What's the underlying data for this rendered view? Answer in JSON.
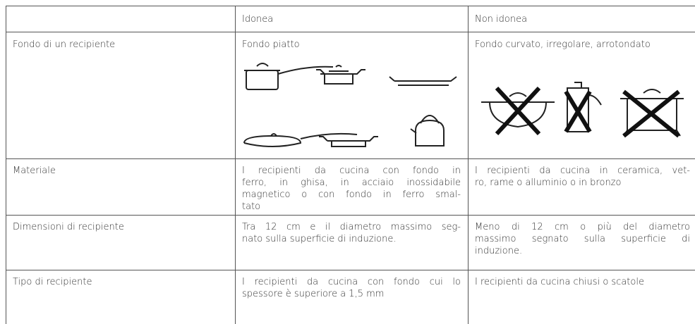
{
  "table": {
    "header": [
      "Idonea",
      "Non idonea"
    ],
    "rows": [
      {
        "label": "Fondo di un recipiente",
        "suitable": [
          "Fondo piatto"
        ],
        "unsuitable": [
          "Fondo curvato, irregolare, arrotondato"
        ]
      },
      {
        "label": "Materiale",
        "suitable": [
          "I recipienti da cucina con fondo in",
          "ferro, in ghisa, in acciaio inossidabile",
          "magnetico o con fondo in ferro smal-",
          "tato"
        ],
        "unsuitable": [
          "I recipienti da cucina in ceramica, vet-",
          "ro, rame o alluminio o in bronzo"
        ]
      },
      {
        "label": "Dimensioni di recipiente",
        "suitable": [
          "Tra 12 cm e il diametro massimo seg-",
          "nato sulla superficie di induzione."
        ],
        "unsuitable": [
          "Meno di 12 cm o più del diametro",
          "massimo segnato sulla superficie di",
          "induzione."
        ]
      },
      {
        "label": "Tipo di recipiente",
        "suitable": [
          "I recipienti da cucina con fondo cui lo",
          "spessore è superiore a 1,5 mm"
        ],
        "unsuitable": [
          "I recipienti da cucina chiusi o scatole"
        ]
      }
    ]
  }
}
